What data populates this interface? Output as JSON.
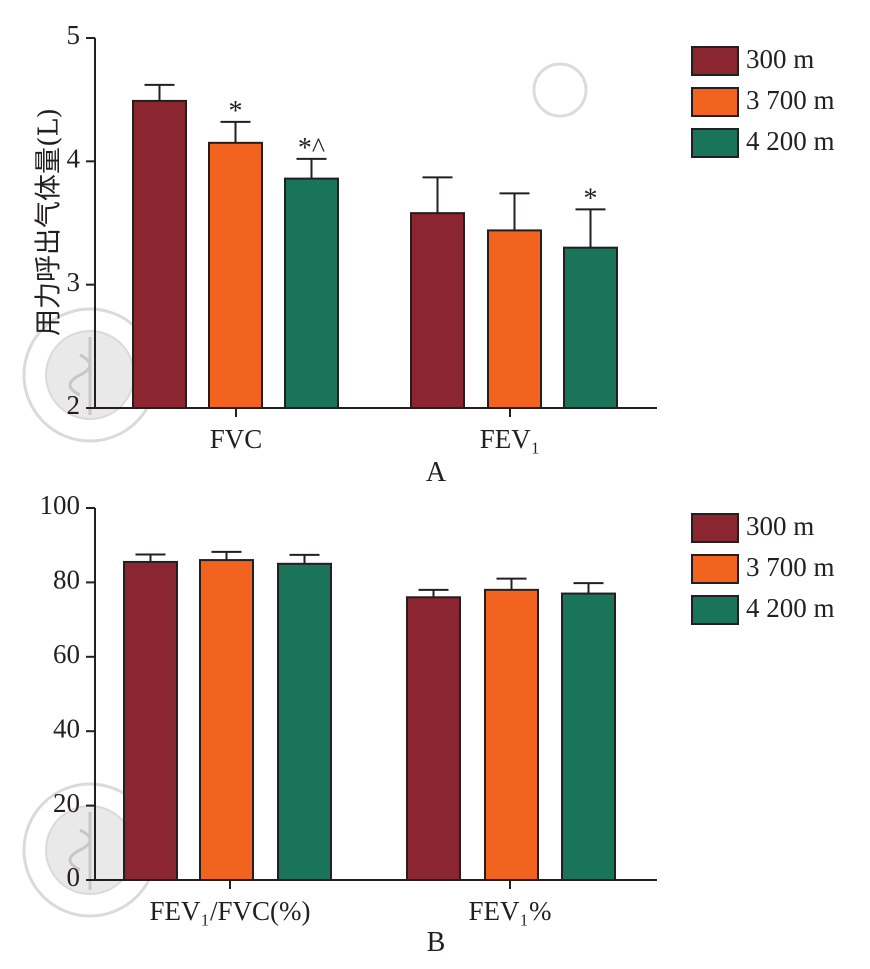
{
  "colors": {
    "c300": "#8b2530",
    "c3700": "#f1631e",
    "c4200": "#1a7459",
    "axis": "#231f20"
  },
  "watermark": {
    "text": "中华医学会",
    "seal_text": "CHINESE MEDICAL ASSOCIATION 1915"
  },
  "chart_data": [
    {
      "type": "bar",
      "panel_label": "A",
      "ylabel": "用力呼出气体量(L)",
      "ylim": [
        2,
        5
      ],
      "yticks": [
        "2",
        "3",
        "4",
        "5"
      ],
      "categories": [
        "FVC",
        "FEV₁"
      ],
      "series": [
        {
          "name": "300 m",
          "values": [
            4.49,
            3.58
          ],
          "errors": [
            0.13,
            0.29
          ],
          "annotations": [
            "",
            ""
          ]
        },
        {
          "name": "3 700 m",
          "values": [
            4.15,
            3.44
          ],
          "errors": [
            0.17,
            0.3
          ],
          "annotations": [
            "*",
            ""
          ]
        },
        {
          "name": "4 200 m",
          "values": [
            3.86,
            3.3
          ],
          "errors": [
            0.16,
            0.31
          ],
          "annotations": [
            "*^",
            "*"
          ]
        }
      ],
      "legend": "top-right"
    },
    {
      "type": "bar",
      "panel_label": "B",
      "ylabel": "",
      "ylim": [
        0,
        100
      ],
      "yticks": [
        "0",
        "20",
        "40",
        "60",
        "80",
        "100"
      ],
      "categories": [
        "FEV₁/FVC(%)",
        "FEV₁%"
      ],
      "series": [
        {
          "name": "300 m",
          "values": [
            85.5,
            76.0
          ],
          "errors": [
            2.0,
            2.0
          ],
          "annotations": [
            "",
            ""
          ]
        },
        {
          "name": "3 700 m",
          "values": [
            86.0,
            78.0
          ],
          "errors": [
            2.2,
            3.0
          ],
          "annotations": [
            "",
            ""
          ]
        },
        {
          "name": "4 200 m",
          "values": [
            85.0,
            77.0
          ],
          "errors": [
            2.4,
            2.8
          ],
          "annotations": [
            "",
            ""
          ]
        }
      ],
      "legend": "top-right"
    }
  ]
}
